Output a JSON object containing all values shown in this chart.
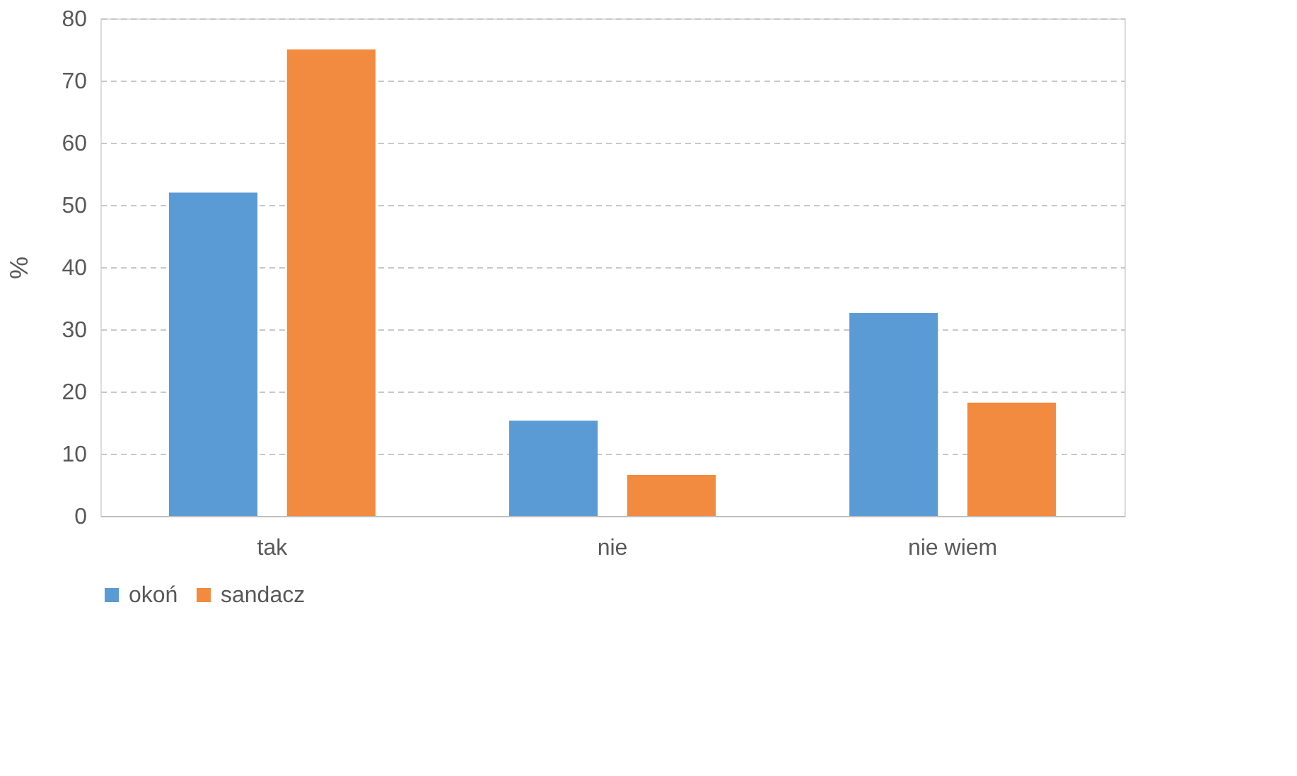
{
  "chart_data": {
    "type": "bar",
    "ylabel": "%",
    "categories": [
      "tak",
      "nie",
      "nie wiem"
    ],
    "series": [
      {
        "name": "okoń",
        "color": "#5b9bd5",
        "values": [
          52,
          15.3,
          32.6
        ]
      },
      {
        "name": "sandacz",
        "color": "#f28a40",
        "values": [
          75,
          6.6,
          18.2
        ]
      }
    ],
    "ylim": [
      0,
      80
    ],
    "yticks": [
      0,
      10,
      20,
      30,
      40,
      50,
      60,
      70,
      80
    ],
    "grid": "y",
    "legend": "bottom"
  }
}
